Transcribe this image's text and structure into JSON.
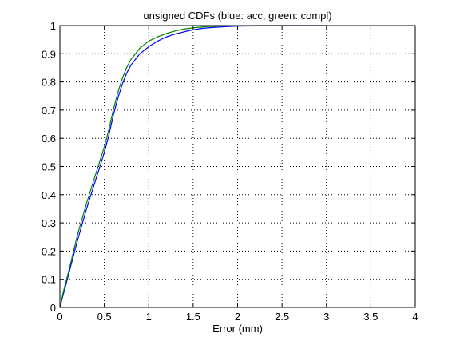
{
  "chart_data": {
    "type": "line",
    "title": "unsigned CDFs (blue: acc, green: compl)",
    "xlabel": "Error (mm)",
    "ylabel": "",
    "xlim": [
      0,
      4
    ],
    "ylim": [
      0,
      1
    ],
    "xticks": [
      0,
      0.5,
      1,
      1.5,
      2,
      2.5,
      3,
      3.5,
      4
    ],
    "yticks": [
      0,
      0.1,
      0.2,
      0.3,
      0.4,
      0.5,
      0.6,
      0.7,
      0.8,
      0.9,
      1
    ],
    "xtick_labels": [
      "0",
      "0.5",
      "1",
      "1.5",
      "2",
      "2.5",
      "3",
      "3.5",
      "4"
    ],
    "ytick_labels": [
      "0",
      "0.1",
      "0.2",
      "0.3",
      "0.4",
      "0.5",
      "0.6",
      "0.7",
      "0.8",
      "0.9",
      "1"
    ],
    "grid": true,
    "grid_style": "dotted",
    "series": [
      {
        "color": "#0000ff",
        "x": [
          0,
          0.05,
          0.1,
          0.2,
          0.3,
          0.4,
          0.5,
          0.55,
          0.6,
          0.65,
          0.7,
          0.75,
          0.8,
          0.9,
          1.0,
          1.1,
          1.2,
          1.3,
          1.4,
          1.5,
          1.6,
          1.7,
          1.8,
          2.0,
          2.2,
          2.5,
          3.0
        ],
        "values": [
          0,
          0.06,
          0.12,
          0.24,
          0.35,
          0.45,
          0.55,
          0.61,
          0.68,
          0.74,
          0.79,
          0.83,
          0.86,
          0.9,
          0.925,
          0.945,
          0.96,
          0.97,
          0.978,
          0.985,
          0.99,
          0.993,
          0.995,
          0.998,
          0.999,
          1.0,
          1.0
        ]
      },
      {
        "color": "#008000",
        "x": [
          0,
          0.05,
          0.1,
          0.2,
          0.3,
          0.4,
          0.5,
          0.55,
          0.6,
          0.65,
          0.7,
          0.75,
          0.8,
          0.9,
          1.0,
          1.1,
          1.2,
          1.3,
          1.4,
          1.5,
          1.6,
          1.7,
          1.8,
          2.0,
          2.2,
          2.5
        ],
        "values": [
          0,
          0.07,
          0.13,
          0.26,
          0.37,
          0.47,
          0.57,
          0.63,
          0.7,
          0.76,
          0.81,
          0.85,
          0.88,
          0.92,
          0.945,
          0.96,
          0.972,
          0.981,
          0.988,
          0.992,
          0.995,
          0.997,
          0.998,
          0.999,
          1.0,
          1.0
        ]
      }
    ]
  }
}
